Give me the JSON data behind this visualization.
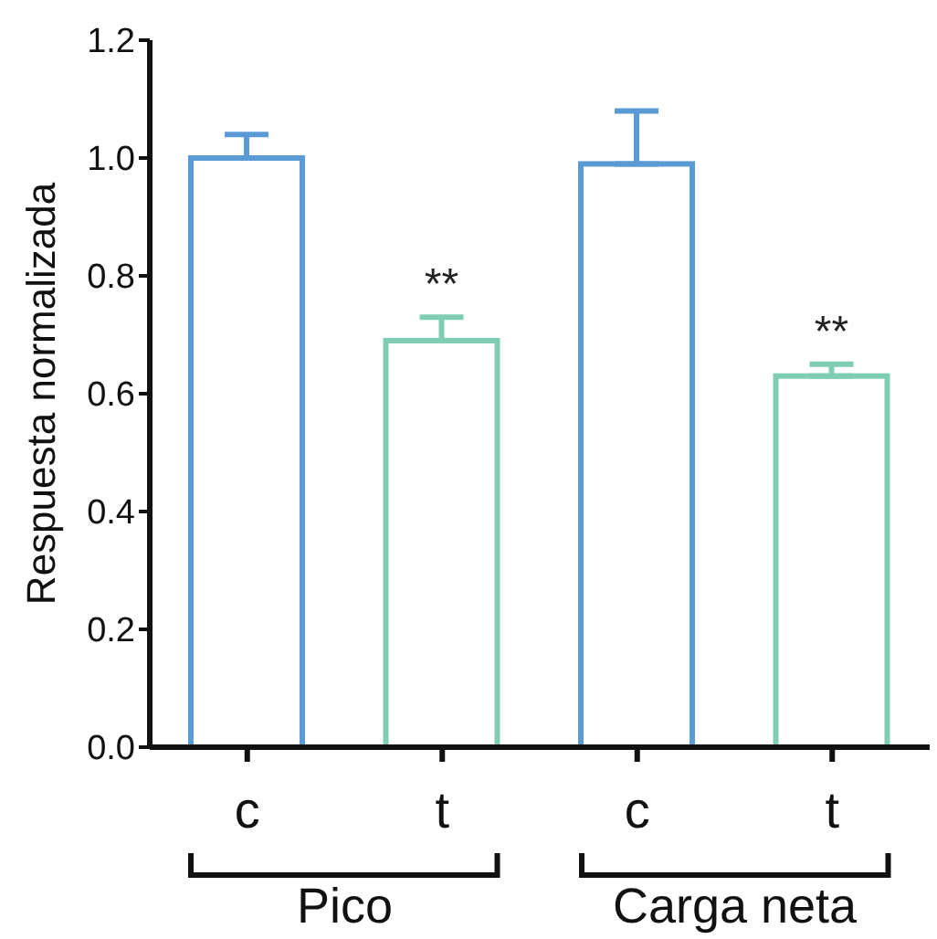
{
  "chart_data": {
    "type": "bar",
    "ylabel": "Respuesta normalizada",
    "categories": [
      "c",
      "t",
      "c",
      "t"
    ],
    "values": [
      1.0,
      0.69,
      0.99,
      0.63
    ],
    "colors": [
      "#5b9bd5",
      "#7fcdb5",
      "#5b9bd5",
      "#7fcdb5"
    ],
    "errors": [
      [
        1.0,
        1.04
      ],
      [
        0.69,
        0.73
      ],
      [
        0.99,
        1.08
      ],
      [
        0.63,
        0.65
      ]
    ],
    "ylim": [
      0,
      1.2
    ],
    "yticks": [
      {
        "value": 0,
        "label": "0.0"
      },
      {
        "value": 0.2,
        "label": "0.2"
      },
      {
        "value": 0.4,
        "label": "0.4"
      },
      {
        "value": 0.6,
        "label": "0.6"
      },
      {
        "value": 0.8,
        "label": "0.8"
      },
      {
        "value": 1.0,
        "label": "1.0"
      },
      {
        "value": 1.2,
        "label": "1.2"
      }
    ],
    "annotations": [
      "**",
      "**",
      "Pico",
      "Carga neta"
    ],
    "grid": false,
    "legend": false
  }
}
